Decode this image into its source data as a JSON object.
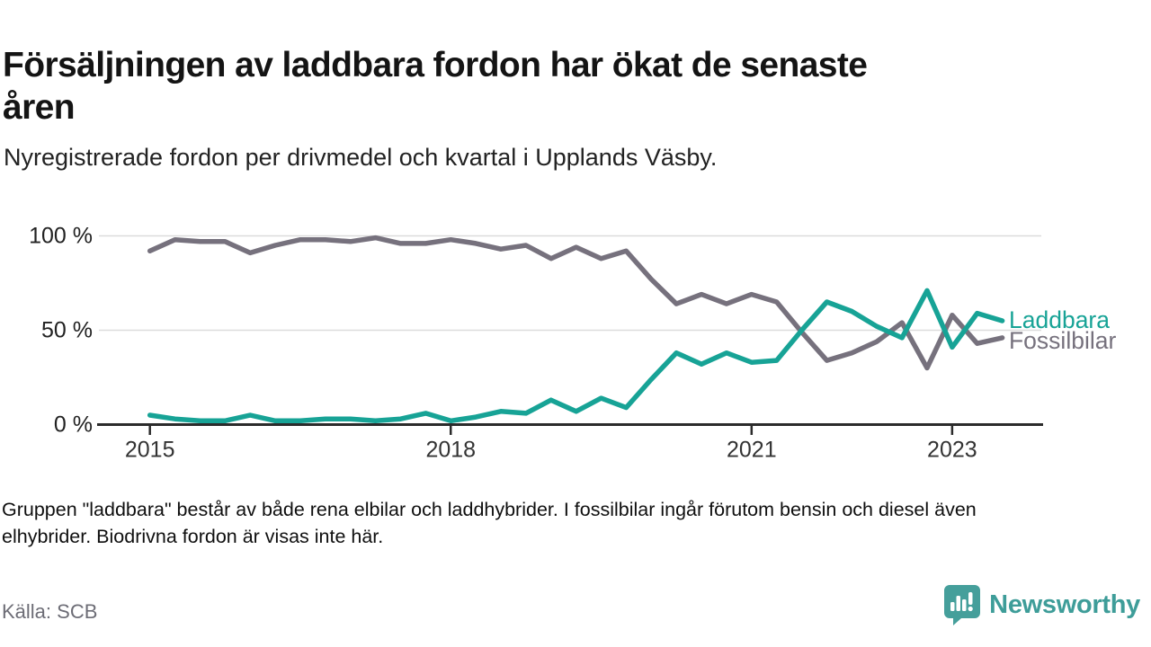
{
  "header": {
    "title": "Försäljningen av laddbara fordon har ökat de senaste\nåren",
    "subtitle": "Nyregistrerade fordon per drivmedel och kvartal i Upplands Väsby."
  },
  "chart_data": {
    "type": "line",
    "x_unit": "quarter",
    "x_start": "2015-Q1",
    "x_end": "2023-Q3",
    "x_tick_years": [
      2015,
      2018,
      2021,
      2023
    ],
    "x_tick_labels": [
      "2015",
      "2018",
      "2021",
      "2023"
    ],
    "y_ticks": [
      {
        "value": 0,
        "label": "0 %"
      },
      {
        "value": 50,
        "label": "50 %"
      },
      {
        "value": 100,
        "label": "100 %"
      }
    ],
    "ylim": [
      0,
      100
    ],
    "grid": "horizontal-only",
    "legend_position": "end-of-line-labels",
    "series": [
      {
        "name": "Fossilbilar",
        "color": "#76717d",
        "values": [
          92,
          98,
          97,
          97,
          91,
          95,
          98,
          98,
          97,
          99,
          96,
          96,
          98,
          96,
          93,
          95,
          88,
          94,
          88,
          92,
          77,
          64,
          69,
          64,
          69,
          65,
          49,
          34,
          38,
          44,
          54,
          30,
          58,
          43,
          46
        ]
      },
      {
        "name": "Laddbara",
        "color": "#17a396",
        "values": [
          5,
          3,
          2,
          2,
          5,
          2,
          2,
          3,
          3,
          2,
          3,
          6,
          2,
          4,
          7,
          6,
          13,
          7,
          14,
          9,
          24,
          38,
          32,
          38,
          33,
          34,
          50,
          65,
          60,
          52,
          46,
          71,
          41,
          59,
          55
        ]
      }
    ],
    "axis_color": "#2b2b2b",
    "gridline_color": "#dcdcdc",
    "tick_label_color": "#333333"
  },
  "footnote": {
    "text": "Gruppen \"laddbara\" består av både rena elbilar och laddhybrider. I fossilbilar ingår förutom bensin och diesel även\nelhybrider. Biodrivna fordon är visas inte här."
  },
  "source": {
    "label": "Källa: SCB"
  },
  "branding": {
    "name": "Newsworthy",
    "color": "#3e9d99",
    "icon": "newsworthy-bubble-chart-logo"
  }
}
